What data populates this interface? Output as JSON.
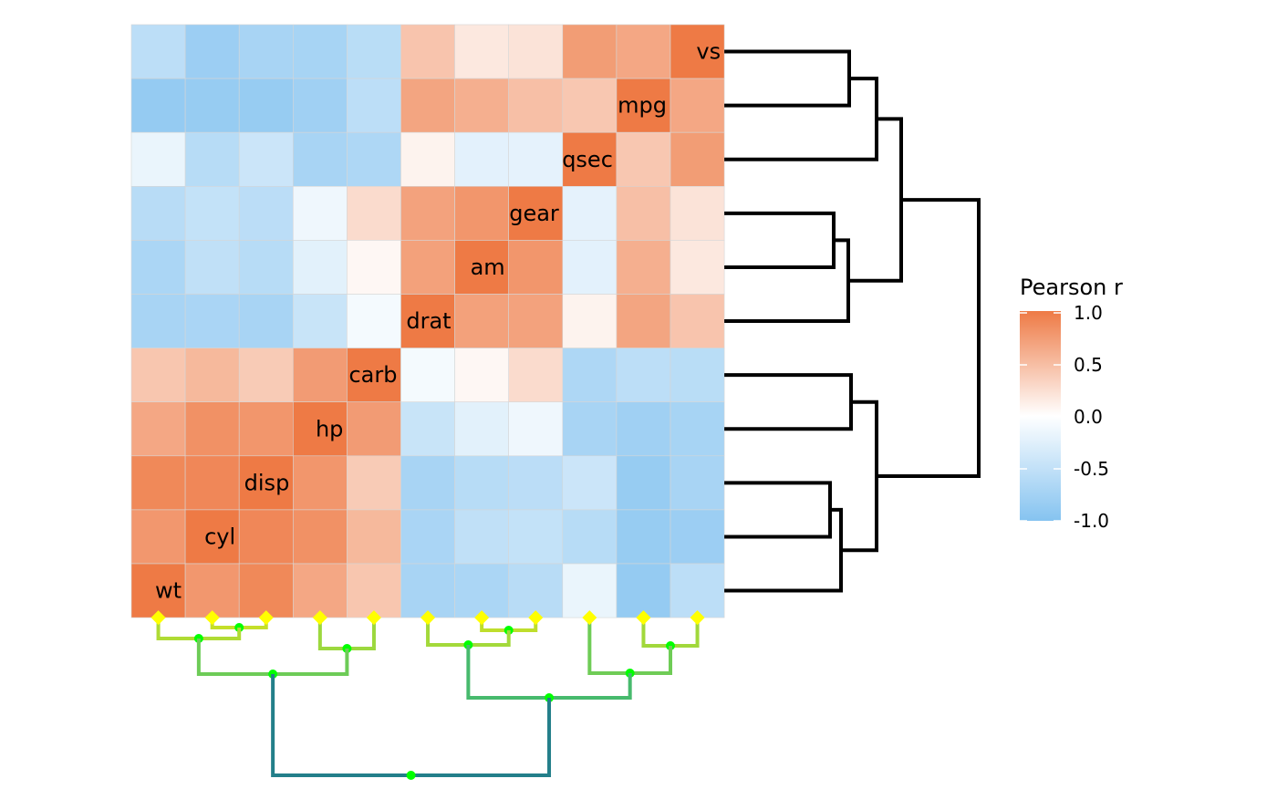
{
  "chart_data": {
    "type": "heatmap",
    "title": "",
    "xlabel": "",
    "ylabel": "",
    "variables": [
      "wt",
      "cyl",
      "disp",
      "hp",
      "carb",
      "drat",
      "am",
      "gear",
      "qsec",
      "mpg",
      "vs"
    ],
    "matrix": [
      [
        1.0,
        0.78,
        0.89,
        0.66,
        0.43,
        -0.71,
        -0.69,
        -0.58,
        -0.17,
        -0.87,
        -0.55
      ],
      [
        0.78,
        1.0,
        0.9,
        0.83,
        0.53,
        -0.7,
        -0.52,
        -0.49,
        -0.59,
        -0.85,
        -0.81
      ],
      [
        0.89,
        0.9,
        1.0,
        0.79,
        0.39,
        -0.71,
        -0.59,
        -0.56,
        -0.43,
        -0.85,
        -0.71
      ],
      [
        0.66,
        0.83,
        0.79,
        1.0,
        0.75,
        -0.45,
        -0.24,
        -0.13,
        -0.71,
        -0.78,
        -0.72
      ],
      [
        0.43,
        0.53,
        0.39,
        0.75,
        1.0,
        -0.09,
        0.06,
        0.27,
        -0.66,
        -0.55,
        -0.57
      ],
      [
        -0.71,
        -0.7,
        -0.71,
        -0.45,
        -0.09,
        1.0,
        0.71,
        0.7,
        0.09,
        0.68,
        0.44
      ],
      [
        -0.69,
        -0.52,
        -0.59,
        -0.24,
        0.06,
        0.71,
        1.0,
        0.79,
        -0.23,
        0.6,
        0.17
      ],
      [
        -0.58,
        -0.49,
        -0.56,
        -0.13,
        0.27,
        0.7,
        0.79,
        1.0,
        -0.21,
        0.48,
        0.21
      ],
      [
        -0.17,
        -0.59,
        -0.43,
        -0.71,
        -0.66,
        0.09,
        -0.23,
        -0.21,
        1.0,
        0.42,
        0.74
      ],
      [
        -0.87,
        -0.85,
        -0.85,
        -0.78,
        -0.55,
        0.68,
        0.6,
        0.48,
        0.42,
        1.0,
        0.66
      ],
      [
        -0.55,
        -0.81,
        -0.71,
        -0.72,
        -0.57,
        0.44,
        0.17,
        0.21,
        0.74,
        0.66,
        1.0
      ]
    ],
    "legend": {
      "title": "Pearson r",
      "ticks": [
        "1.0",
        "0.5",
        "0.0",
        "-0.5",
        "-1.0"
      ],
      "min": -1,
      "max": 1
    },
    "colors": {
      "high": "#ee7a45",
      "mid": "#ffffff",
      "low": "#85c3f0",
      "row_dendrogram": "#000000",
      "col_leaf_marker": "#ffff00",
      "col_node_marker": "#00ff00"
    }
  }
}
